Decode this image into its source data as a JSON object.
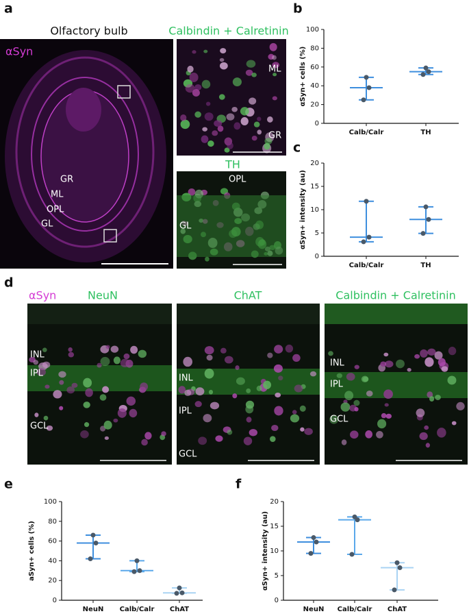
{
  "panels": [
    "a",
    "b",
    "c",
    "d",
    "e",
    "f"
  ],
  "panel_a": {
    "title": "Olfactory bulb",
    "stain": "αSyn",
    "layers": [
      "GR",
      "ML",
      "OPL",
      "GL"
    ],
    "inset_top": {
      "title": "Calbindin + Calretinin",
      "labels": [
        "ML",
        "GR"
      ]
    },
    "inset_bottom": {
      "title": "TH",
      "labels": [
        "OPL",
        "GL"
      ]
    }
  },
  "panel_d": {
    "stain": "αSyn",
    "columns": [
      {
        "title": "NeuN",
        "labels": [
          "INL",
          "IPL",
          "GCL"
        ]
      },
      {
        "title": "ChAT",
        "labels": [
          "INL",
          "IPL",
          "GCL"
        ]
      },
      {
        "title": "Calbindin + Calretinin",
        "labels": [
          "INL",
          "IPL",
          "GCL"
        ]
      }
    ]
  },
  "chart_data": [
    {
      "type": "dot",
      "ylabel": "αSyn+ cells (%)",
      "categories": [
        "Calb/Calr",
        "TH"
      ],
      "points": [
        [
          49,
          38,
          25
        ],
        [
          59,
          55,
          52
        ]
      ],
      "medians": [
        38,
        55
      ],
      "colors": [
        "#3d8ede",
        "#3d8ede"
      ],
      "point_color": "#4a5968",
      "ylim": [
        0,
        100
      ],
      "yticks": [
        0,
        20,
        40,
        60,
        80,
        100
      ]
    },
    {
      "type": "dot",
      "ylabel": "αSyn+ intensity (au)",
      "categories": [
        "Calb/Calr",
        "TH"
      ],
      "points": [
        [
          11.8,
          4.1,
          3.1
        ],
        [
          10.6,
          7.9,
          4.9
        ]
      ],
      "medians": [
        4.1,
        7.9
      ],
      "colors": [
        "#3d8ede",
        "#3d8ede"
      ],
      "point_color": "#4a5968",
      "ylim": [
        0,
        20
      ],
      "yticks": [
        0,
        5,
        10,
        15,
        20
      ]
    },
    {
      "type": "dot",
      "ylabel": "aSyn+ cells (%)",
      "categories": [
        "NeuN",
        "Calb/Calr",
        "ChAT"
      ],
      "points": [
        [
          66,
          58,
          42
        ],
        [
          40,
          30,
          29
        ],
        [
          12.5,
          7.5,
          7
        ]
      ],
      "medians": [
        58,
        30,
        7.5
      ],
      "colors": [
        "#3d8ede",
        "#5aa8ea",
        "#a9d3f3"
      ],
      "point_color": "#4a5968",
      "ylim": [
        0,
        100
      ],
      "yticks": [
        0,
        20,
        40,
        60,
        80,
        100
      ]
    },
    {
      "type": "dot",
      "ylabel": "αSyn+ intensity (au)",
      "categories": [
        "NeuN",
        "Calb/Calr",
        "ChAT"
      ],
      "points": [
        [
          12.7,
          11.8,
          9.5
        ],
        [
          16.9,
          16.3,
          9.3
        ],
        [
          7.6,
          6.6,
          2.1
        ]
      ],
      "medians": [
        11.8,
        16.3,
        6.6
      ],
      "colors": [
        "#3d8ede",
        "#5aa8ea",
        "#a9d3f3"
      ],
      "point_color": "#4a5968",
      "ylim": [
        0,
        20
      ],
      "yticks": [
        0,
        5,
        10,
        15,
        20
      ]
    }
  ]
}
